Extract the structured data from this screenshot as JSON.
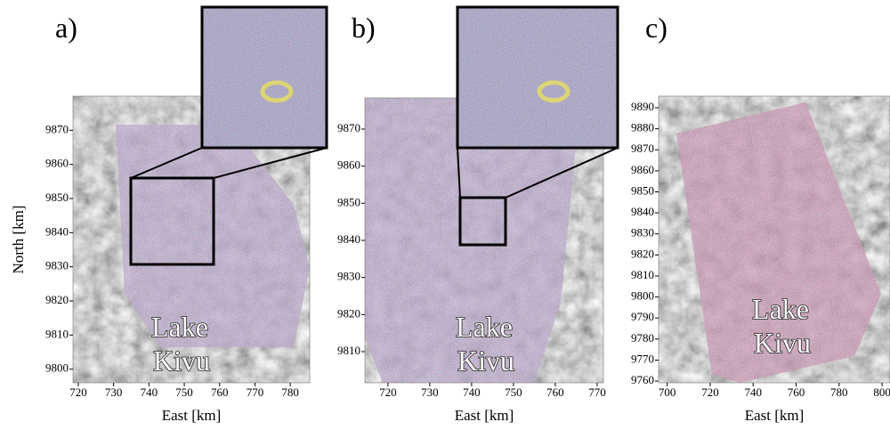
{
  "panels": [
    {
      "label": "a)",
      "x_label": "East [km]",
      "y_label": "North [km]",
      "xlim": [
        718.5,
        785.5
      ],
      "ylim": [
        9796,
        9880
      ],
      "xticks": [
        720,
        730,
        740,
        750,
        760,
        770,
        780
      ],
      "yticks": [
        9800,
        9810,
        9820,
        9830,
        9840,
        9850,
        9860,
        9870
      ],
      "annotation": [
        "Lake",
        "Kivu"
      ]
    },
    {
      "label": "b)",
      "x_label": "East [km]",
      "xlim": [
        714.5,
        771.5
      ],
      "ylim": [
        9801.6,
        9878.4
      ],
      "xticks": [
        720,
        730,
        740,
        750,
        760,
        770
      ],
      "yticks": [
        9810,
        9820,
        9830,
        9840,
        9850,
        9860,
        9870
      ],
      "annotation": [
        "Lake",
        "Kivu"
      ]
    },
    {
      "label": "c)",
      "x_label": "East [km]",
      "xlim": [
        696,
        803.7
      ],
      "ylim": [
        9759.2,
        9895.5
      ],
      "xticks": [
        700,
        720,
        740,
        760,
        780,
        800
      ],
      "yticks": [
        9760,
        9770,
        9780,
        9790,
        9800,
        9810,
        9820,
        9830,
        9840,
        9850,
        9860,
        9870,
        9880,
        9890
      ],
      "annotation": [
        "Lake",
        "Kivu"
      ]
    }
  ]
}
